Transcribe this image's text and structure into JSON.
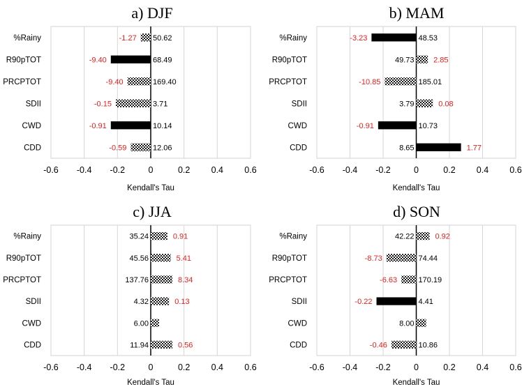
{
  "colors": {
    "negative": "#e8201e",
    "positive": "#e8201e",
    "text": "#000000",
    "grid": "#d6d6d6"
  },
  "chart_data": [
    {
      "type": "bar",
      "orientation": "horizontal",
      "title": "a) DJF",
      "xlabel": "Kendall's Tau",
      "xlim": [
        -0.6,
        0.6
      ],
      "xticks": [
        "-0.6",
        "-0.4",
        "-0.2",
        "0",
        "0.2",
        "0.4",
        "0.6"
      ],
      "categories": [
        "%Rainy",
        "R90pTOT",
        "PRCPTOT",
        "SDII",
        "CWD",
        "CDD"
      ],
      "values": [
        -0.06,
        -0.24,
        -0.14,
        -0.21,
        -0.24,
        -0.12
      ],
      "significant": [
        false,
        true,
        false,
        false,
        true,
        false
      ],
      "trend_labels": [
        "-1.27",
        "-9.40",
        "-9.40",
        "-0.15",
        "-0.91",
        "-0.59"
      ],
      "mean_labels": [
        "50.62",
        "68.49",
        "169.40",
        "3.71",
        "10.14",
        "12.06"
      ]
    },
    {
      "type": "bar",
      "orientation": "horizontal",
      "title": "b) MAM",
      "xlabel": "Kendall's Tau",
      "xlim": [
        -0.6,
        0.6
      ],
      "xticks": [
        "-0.6",
        "-0.4",
        "-0.2",
        "0",
        "0.2",
        "0.4",
        "0.6"
      ],
      "categories": [
        "%Rainy",
        "R90pTOT",
        "PRCPTOT",
        "SDII",
        "CWD",
        "CDD"
      ],
      "values": [
        -0.27,
        0.07,
        -0.19,
        0.1,
        -0.23,
        0.27
      ],
      "significant": [
        true,
        false,
        false,
        false,
        true,
        true
      ],
      "trend_labels": [
        "-3.23",
        "2.85",
        "-10.85",
        "0.08",
        "-0.91",
        "1.77"
      ],
      "mean_labels": [
        "48.53",
        "49.73",
        "185.01",
        "3.79",
        "10.73",
        "8.65"
      ]
    },
    {
      "type": "bar",
      "orientation": "horizontal",
      "title": "c) JJA",
      "xlabel": "Kendall's Tau",
      "xlim": [
        -0.6,
        0.6
      ],
      "xticks": [
        "-0.6",
        "-0.4",
        "-0.2",
        "0",
        "0.2",
        "0.4",
        "0.6"
      ],
      "categories": [
        "%Rainy",
        "R90pTOT",
        "PRCPTOT",
        "SDII",
        "CWD",
        "CDD"
      ],
      "values": [
        0.1,
        0.12,
        0.13,
        0.11,
        0.05,
        0.13
      ],
      "significant": [
        false,
        false,
        false,
        false,
        false,
        false
      ],
      "trend_labels": [
        "0.91",
        "5.41",
        "8.34",
        "0.13",
        "",
        "0.56"
      ],
      "mean_labels": [
        "35.24",
        "45.56",
        "137.76",
        "4.32",
        "6.00",
        "11.94"
      ]
    },
    {
      "type": "bar",
      "orientation": "horizontal",
      "title": "d) SON",
      "xlabel": "Kendall's Tau",
      "xlim": [
        -0.6,
        0.6
      ],
      "xticks": [
        "-0.6",
        "-0.4",
        "-0.2",
        "0",
        "0.2",
        "0.4",
        "0.6"
      ],
      "categories": [
        "%Rainy",
        "R90pTOT",
        "PRCPTOT",
        "SDII",
        "CWD",
        "CDD"
      ],
      "values": [
        0.08,
        -0.18,
        -0.09,
        -0.24,
        0.06,
        -0.15
      ],
      "significant": [
        false,
        false,
        false,
        true,
        false,
        false
      ],
      "trend_labels": [
        "0.92",
        "-8.73",
        "-6.63",
        "-0.22",
        "",
        "-0.46"
      ],
      "mean_labels": [
        "42.22",
        "74.44",
        "170.19",
        "4.41",
        "8.00",
        "10.86"
      ]
    }
  ]
}
